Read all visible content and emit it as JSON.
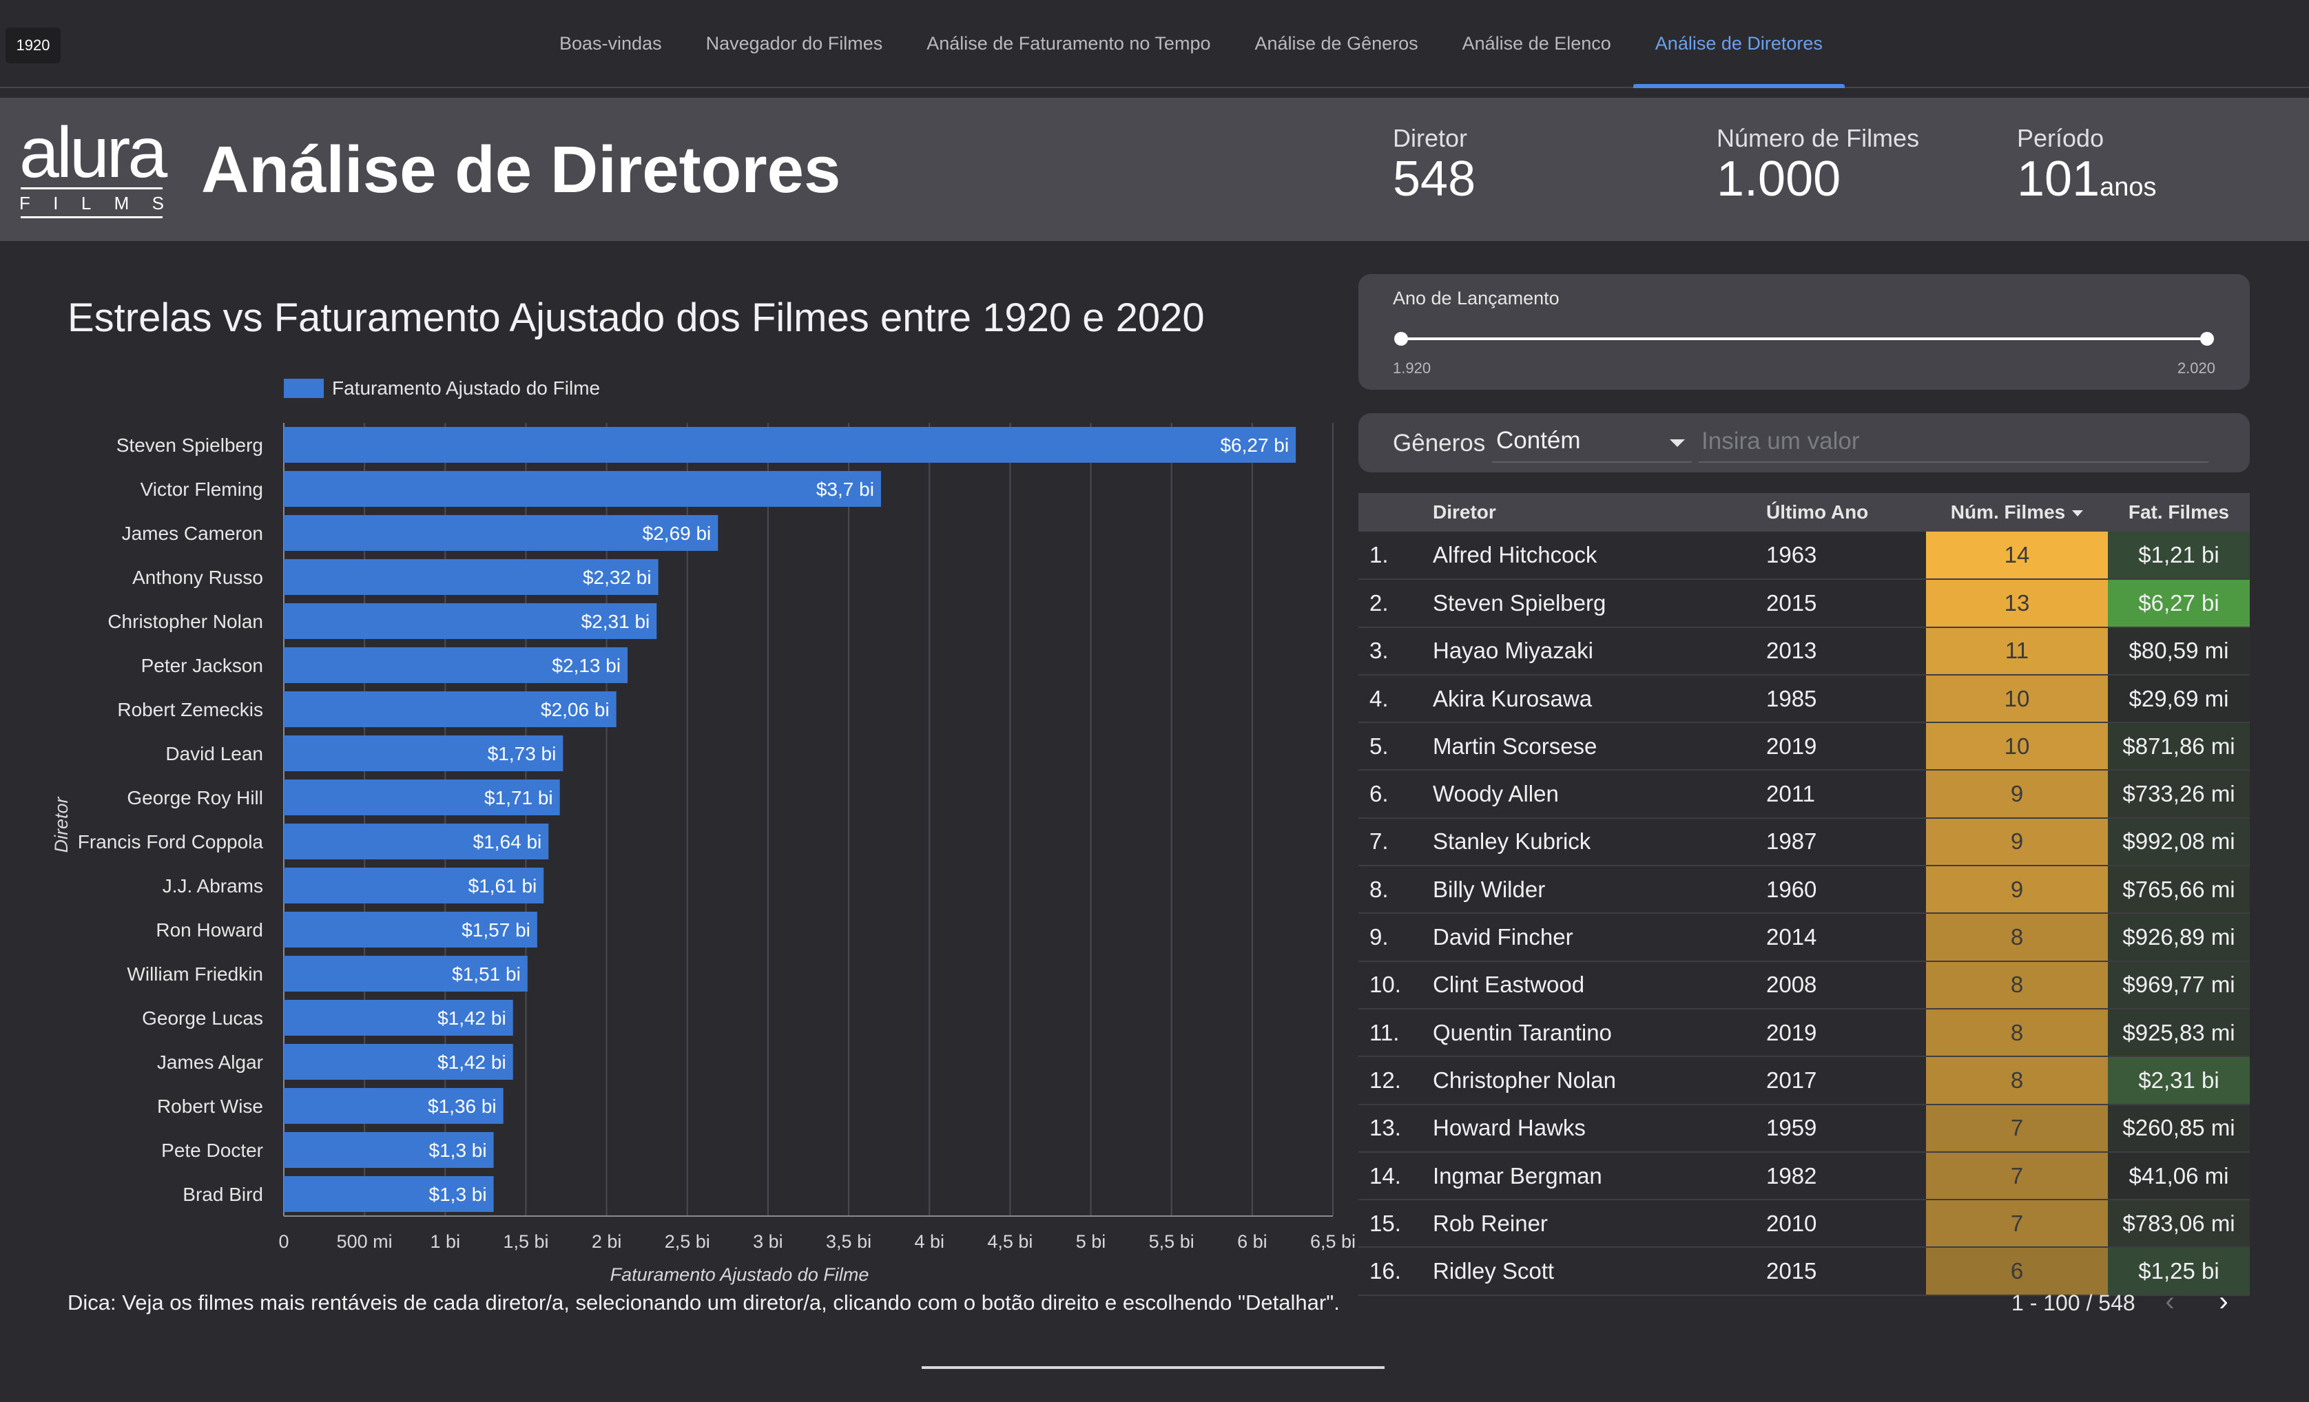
{
  "nav": {
    "year_chip": "1920",
    "tabs": [
      {
        "label": "Boas-vindas",
        "active": false
      },
      {
        "label": "Navegador do Filmes",
        "active": false
      },
      {
        "label": "Análise de Faturamento no Tempo",
        "active": false
      },
      {
        "label": "Análise de Gêneros",
        "active": false
      },
      {
        "label": "Análise de Elenco",
        "active": false
      },
      {
        "label": "Análise de Diretores",
        "active": true
      }
    ]
  },
  "header": {
    "logo_word": "alura",
    "logo_sub": [
      "F",
      "I",
      "L",
      "M",
      "S"
    ],
    "title": "Análise de Diretores",
    "kpis": [
      {
        "label": "Diretor",
        "value": "548",
        "unit": ""
      },
      {
        "label": "Número de Filmes",
        "value": "1.000",
        "unit": ""
      },
      {
        "label": "Período",
        "value": "101",
        "unit": "anos"
      }
    ]
  },
  "chart": {
    "title": "Estrelas vs Faturamento Ajustado dos Filmes entre 1920 e 2020",
    "legend_label": "Faturamento Ajustado do Filme",
    "tip": "Dica: Veja os filmes mais rentáveis de cada diretor/a, selecionando um diretor/a, clicando com o botão direito e escolhendo \"Detalhar\"."
  },
  "chart_data": {
    "type": "bar",
    "orientation": "horizontal",
    "categories": [
      "Steven Spielberg",
      "Victor Fleming",
      "James Cameron",
      "Anthony Russo",
      "Christopher Nolan",
      "Peter Jackson",
      "Robert Zemeckis",
      "David Lean",
      "George Roy Hill",
      "Francis Ford Coppola",
      "J.J. Abrams",
      "Ron Howard",
      "William Friedkin",
      "George Lucas",
      "James Algar",
      "Robert Wise",
      "Pete Docter",
      "Brad Bird"
    ],
    "values": [
      6.27,
      3.7,
      2.69,
      2.32,
      2.31,
      2.13,
      2.06,
      1.73,
      1.71,
      1.64,
      1.61,
      1.57,
      1.51,
      1.42,
      1.42,
      1.36,
      1.3,
      1.3
    ],
    "value_labels": [
      "$6,27 bi",
      "$3,7 bi",
      "$2,69 bi",
      "$2,32 bi",
      "$2,31 bi",
      "$2,13 bi",
      "$2,06 bi",
      "$1,73 bi",
      "$1,71 bi",
      "$1,64 bi",
      "$1,61 bi",
      "$1,57 bi",
      "$1,51 bi",
      "$1,42 bi",
      "$1,42 bi",
      "$1,36 bi",
      "$1,3 bi",
      "$1,3 bi"
    ],
    "series": [
      {
        "name": "Faturamento Ajustado do Filme"
      }
    ],
    "xlabel": "Faturamento Ajustado do Filme",
    "ylabel": "Diretor",
    "xlim": [
      0,
      6.5
    ],
    "xticks": [
      0,
      0.5,
      1,
      1.5,
      2,
      2.5,
      3,
      3.5,
      4,
      4.5,
      5,
      5.5,
      6,
      6.5
    ],
    "xtick_labels": [
      "0",
      "500 mi",
      "1 bi",
      "1,5 bi",
      "2 bi",
      "2,5 bi",
      "3 bi",
      "3,5 bi",
      "4 bi",
      "4,5 bi",
      "5 bi",
      "5,5 bi",
      "6 bi",
      "6,5 bi"
    ],
    "grid": true,
    "legend_position": "top-left",
    "color": "#3a78d4"
  },
  "slider": {
    "label": "Ano de Lançamento",
    "min_label": "1.920",
    "max_label": "2.020",
    "min": 1920,
    "max": 2020,
    "value_low": 1920,
    "value_high": 2020
  },
  "filter": {
    "label": "Gêneros",
    "operator": "Contém",
    "placeholder": "Insira um valor"
  },
  "table": {
    "headers": {
      "rank": "",
      "diretor": "Diretor",
      "ultimo_ano": "Último Ano",
      "num_filmes": "Núm. Filmes",
      "fat_filmes": "Fat. Filmes"
    },
    "rows": [
      {
        "rank": "1.",
        "diretor": "Alfred Hitchcock",
        "ano": "1963",
        "num": "14",
        "fat": "$1,21 bi",
        "num_color": "#f2b43e",
        "fat_color": "#354a36"
      },
      {
        "rank": "2.",
        "diretor": "Steven Spielberg",
        "ano": "2015",
        "num": "13",
        "fat": "$6,27 bi",
        "num_color": "#e9ac3c",
        "fat_color": "#4e9a42"
      },
      {
        "rank": "3.",
        "diretor": "Hayao Miyazaki",
        "ano": "2013",
        "num": "11",
        "fat": "$80,59 mi",
        "num_color": "#d7a03a",
        "fat_color": "#2d2f2e"
      },
      {
        "rank": "4.",
        "diretor": "Akira Kurosawa",
        "ano": "1985",
        "num": "10",
        "fat": "$29,69 mi",
        "num_color": "#cc983a",
        "fat_color": "#2c2e2d"
      },
      {
        "rank": "5.",
        "diretor": "Martin Scorsese",
        "ano": "2019",
        "num": "10",
        "fat": "$871,86 mi",
        "num_color": "#cc983a",
        "fat_color": "#303a31"
      },
      {
        "rank": "6.",
        "diretor": "Woody Allen",
        "ano": "2011",
        "num": "9",
        "fat": "$733,26 mi",
        "num_color": "#c29138",
        "fat_color": "#303830"
      },
      {
        "rank": "7.",
        "diretor": "Stanley Kubrick",
        "ano": "1987",
        "num": "9",
        "fat": "$992,08 mi",
        "num_color": "#c29138",
        "fat_color": "#313b32"
      },
      {
        "rank": "8.",
        "diretor": "Billy Wilder",
        "ano": "1960",
        "num": "9",
        "fat": "$765,66 mi",
        "num_color": "#c29138",
        "fat_color": "#303830"
      },
      {
        "rank": "9.",
        "diretor": "David Fincher",
        "ano": "2014",
        "num": "8",
        "fat": "$926,89 mi",
        "num_color": "#b58836",
        "fat_color": "#313a31"
      },
      {
        "rank": "10.",
        "diretor": "Clint Eastwood",
        "ano": "2008",
        "num": "8",
        "fat": "$969,77 mi",
        "num_color": "#b58836",
        "fat_color": "#313b32"
      },
      {
        "rank": "11.",
        "diretor": "Quentin Tarantino",
        "ano": "2019",
        "num": "8",
        "fat": "$925,83 mi",
        "num_color": "#b58836",
        "fat_color": "#313a31"
      },
      {
        "rank": "12.",
        "diretor": "Christopher Nolan",
        "ano": "2017",
        "num": "8",
        "fat": "$2,31 bi",
        "num_color": "#b58836",
        "fat_color": "#3a5a3a"
      },
      {
        "rank": "13.",
        "diretor": "Howard Hawks",
        "ano": "1959",
        "num": "7",
        "fat": "$260,85 mi",
        "num_color": "#a77f34",
        "fat_color": "#2e332f"
      },
      {
        "rank": "14.",
        "diretor": "Ingmar Bergman",
        "ano": "1982",
        "num": "7",
        "fat": "$41,06 mi",
        "num_color": "#a77f34",
        "fat_color": "#2c2e2d"
      },
      {
        "rank": "15.",
        "diretor": "Rob Reiner",
        "ano": "2010",
        "num": "7",
        "fat": "$783,06 mi",
        "num_color": "#a77f34",
        "fat_color": "#303830"
      },
      {
        "rank": "16.",
        "diretor": "Ridley Scott",
        "ano": "2015",
        "num": "6",
        "fat": "$1,25 bi",
        "num_color": "#997532",
        "fat_color": "#354a36"
      }
    ],
    "pagination": "1 - 100 / 548"
  },
  "icons": {
    "prev": "chevron-left-icon",
    "next": "chevron-right-icon",
    "sort": "caret-down-icon",
    "dropdown": "caret-down-icon"
  }
}
